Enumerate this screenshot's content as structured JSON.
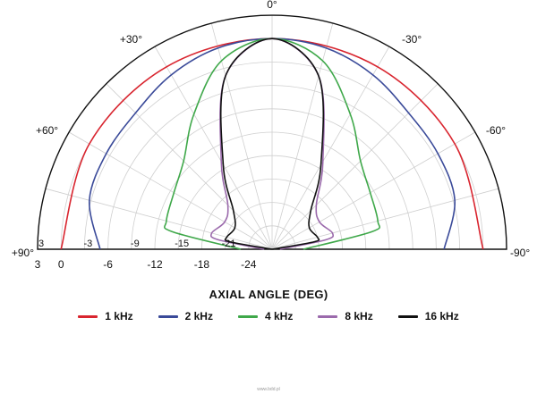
{
  "chart_data": {
    "type": "polar-line",
    "xlabel": "AXIAL ANGLE (DEG)",
    "angle_labels": [
      {
        "angle": 0,
        "text": "0°"
      },
      {
        "angle": 30,
        "text": "+30°"
      },
      {
        "angle": 60,
        "text": "+60°"
      },
      {
        "angle": 90,
        "text": "+90°"
      },
      {
        "angle": -30,
        "text": "-30°"
      },
      {
        "angle": -60,
        "text": "-60°"
      },
      {
        "angle": -90,
        "text": "-90°"
      }
    ],
    "radial_range_db": [
      -27,
      3
    ],
    "radial_ticks": [
      3,
      0,
      -6,
      -12,
      -18,
      -24
    ],
    "inner_ring_labels": [
      "3",
      "-3",
      "-9",
      "-15",
      "-21"
    ],
    "series": [
      {
        "name": "1 kHz",
        "color": "#d9252f",
        "points": [
          [
            -90,
            0
          ],
          [
            -60,
            0
          ],
          [
            -30,
            0
          ],
          [
            0,
            0
          ],
          [
            30,
            0
          ],
          [
            60,
            0
          ],
          [
            90,
            0
          ]
        ]
      },
      {
        "name": "2 kHz",
        "color": "#3a4a99",
        "points": [
          [
            -90,
            -5
          ],
          [
            -75,
            -2.8
          ],
          [
            -60,
            -2.5
          ],
          [
            -45,
            -2.3
          ],
          [
            -30,
            -1.2
          ],
          [
            -15,
            -0.3
          ],
          [
            0,
            0
          ],
          [
            15,
            -0.3
          ],
          [
            30,
            -1.2
          ],
          [
            45,
            -2.3
          ],
          [
            60,
            -2.5
          ],
          [
            75,
            -2.8
          ],
          [
            90,
            -5
          ]
        ]
      },
      {
        "name": "4 kHz",
        "color": "#3fa84a",
        "points": [
          [
            -90,
            -23
          ],
          [
            -80,
            -14
          ],
          [
            -75,
            -13
          ],
          [
            -60,
            -12.5
          ],
          [
            -45,
            -11
          ],
          [
            -30,
            -7
          ],
          [
            -15,
            -2
          ],
          [
            0,
            0
          ],
          [
            15,
            -2
          ],
          [
            30,
            -7
          ],
          [
            45,
            -11
          ],
          [
            60,
            -12.5
          ],
          [
            75,
            -13
          ],
          [
            80,
            -14
          ],
          [
            90,
            -23
          ]
        ]
      },
      {
        "name": "8 kHz",
        "color": "#9b6aac",
        "points": [
          [
            -90,
            -26
          ],
          [
            -80,
            -20
          ],
          [
            -75,
            -19
          ],
          [
            -60,
            -20
          ],
          [
            -45,
            -19
          ],
          [
            -30,
            -14
          ],
          [
            -15,
            -4
          ],
          [
            0,
            0
          ],
          [
            15,
            -4
          ],
          [
            30,
            -14
          ],
          [
            45,
            -19
          ],
          [
            60,
            -20
          ],
          [
            75,
            -19
          ],
          [
            80,
            -20
          ],
          [
            90,
            -26
          ]
        ]
      },
      {
        "name": "16 kHz",
        "color": "#111111",
        "points": [
          [
            -90,
            -27
          ],
          [
            -80,
            -21.5
          ],
          [
            -75,
            -21
          ],
          [
            -60,
            -21.5
          ],
          [
            -45,
            -20
          ],
          [
            -30,
            -14.5
          ],
          [
            -15,
            -4
          ],
          [
            0,
            0
          ],
          [
            15,
            -4
          ],
          [
            30,
            -14.5
          ],
          [
            45,
            -20
          ],
          [
            60,
            -21.5
          ],
          [
            75,
            -21
          ],
          [
            80,
            -21.5
          ],
          [
            90,
            -27
          ]
        ]
      }
    ],
    "grid": true,
    "legend_position": "bottom"
  },
  "footer_text": "www.bdd.pl"
}
